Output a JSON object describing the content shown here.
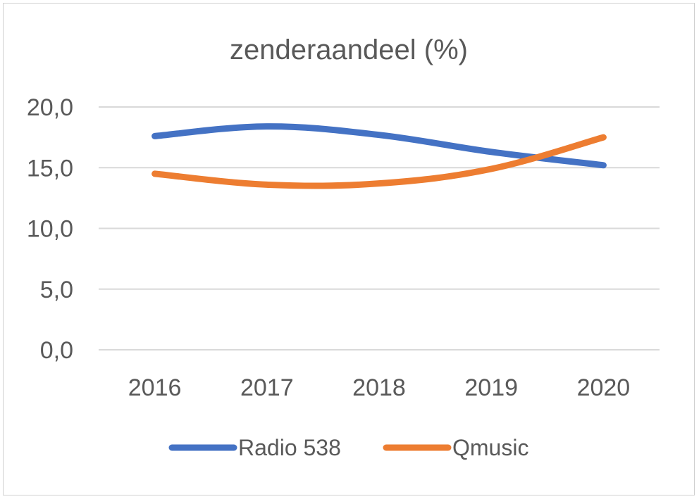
{
  "chart_data": {
    "type": "line",
    "title": "zenderaandeel (%)",
    "categories": [
      "2016",
      "2017",
      "2018",
      "2019",
      "2020"
    ],
    "series": [
      {
        "name": "Radio 538",
        "color": "#4472C4",
        "values": [
          17.6,
          18.4,
          17.7,
          16.3,
          15.2
        ]
      },
      {
        "name": "Qmusic",
        "color": "#ED7D31",
        "values": [
          14.5,
          13.6,
          13.7,
          14.9,
          17.5
        ]
      }
    ],
    "ylim": [
      0,
      20
    ],
    "yticks": [
      0,
      5,
      10,
      15,
      20
    ],
    "ytick_labels": [
      "0,0",
      "5,0",
      "10,0",
      "15,0",
      "20,0"
    ],
    "grid": true,
    "legend": "bottom",
    "xlabel": "",
    "ylabel": ""
  }
}
